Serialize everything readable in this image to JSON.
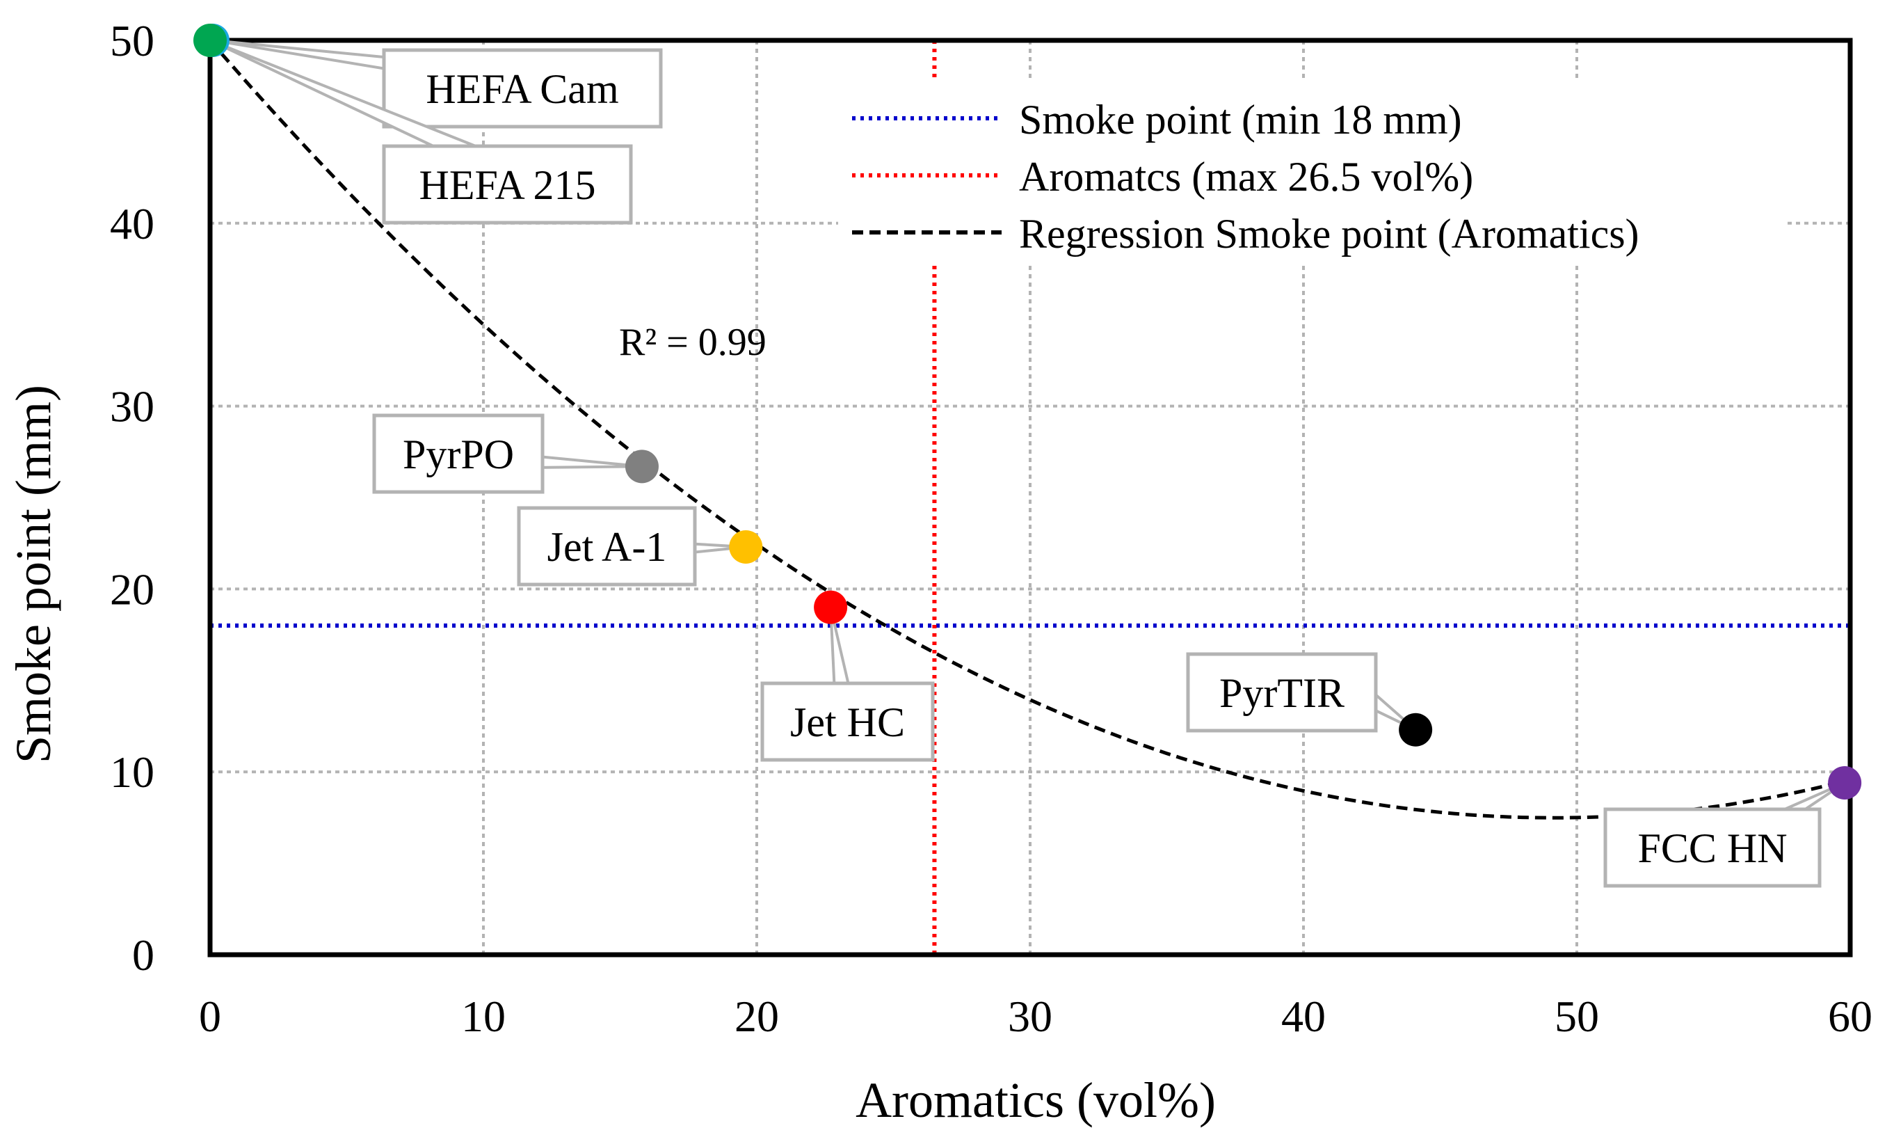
{
  "chart_data": {
    "type": "scatter",
    "xlabel": "Aromatics (vol%)",
    "ylabel": "Smoke point (mm)",
    "xlim": [
      0,
      60
    ],
    "ylim": [
      0,
      50
    ],
    "xticks": [
      0,
      10,
      20,
      30,
      40,
      50,
      60
    ],
    "yticks": [
      0,
      10,
      20,
      30,
      40,
      50
    ],
    "grid": true,
    "legend_position": "top-right",
    "points": [
      {
        "label": "HEFA Cam",
        "x": 0.1,
        "y": 50,
        "color": "#1aa8e0"
      },
      {
        "label": "HEFA 215",
        "x": 0.0,
        "y": 50,
        "color": "#00a651"
      },
      {
        "label": "PyrPO",
        "x": 15.8,
        "y": 26.7,
        "color": "#808080"
      },
      {
        "label": "Jet A-1",
        "x": 19.6,
        "y": 22.3,
        "color": "#ffc000"
      },
      {
        "label": "Jet HC",
        "x": 22.7,
        "y": 19.0,
        "color": "#ff0000"
      },
      {
        "label": "PyrTIR",
        "x": 44.1,
        "y": 12.3,
        "color": "#000000"
      },
      {
        "label": "FCC HN",
        "x": 59.8,
        "y": 9.4,
        "color": "#7030a0"
      }
    ],
    "reference_lines": [
      {
        "name": "Smoke point (min 18 mm)",
        "orientation": "horizontal",
        "value": 18,
        "color": "#0000cc",
        "style": "dotted"
      },
      {
        "name": "Aromatcs (max 26.5 vol%)",
        "orientation": "vertical",
        "value": 26.5,
        "color": "#ff0000",
        "style": "dotted"
      }
    ],
    "regression": {
      "name": "Regression Smoke point (Aromatics)",
      "type": "polynomial-2",
      "coefficients": [
        50,
        -1.73,
        0.0176
      ],
      "x_range": [
        0,
        60
      ],
      "color": "#000000",
      "style": "dashed",
      "r2_label": "R² = 0.99"
    }
  }
}
